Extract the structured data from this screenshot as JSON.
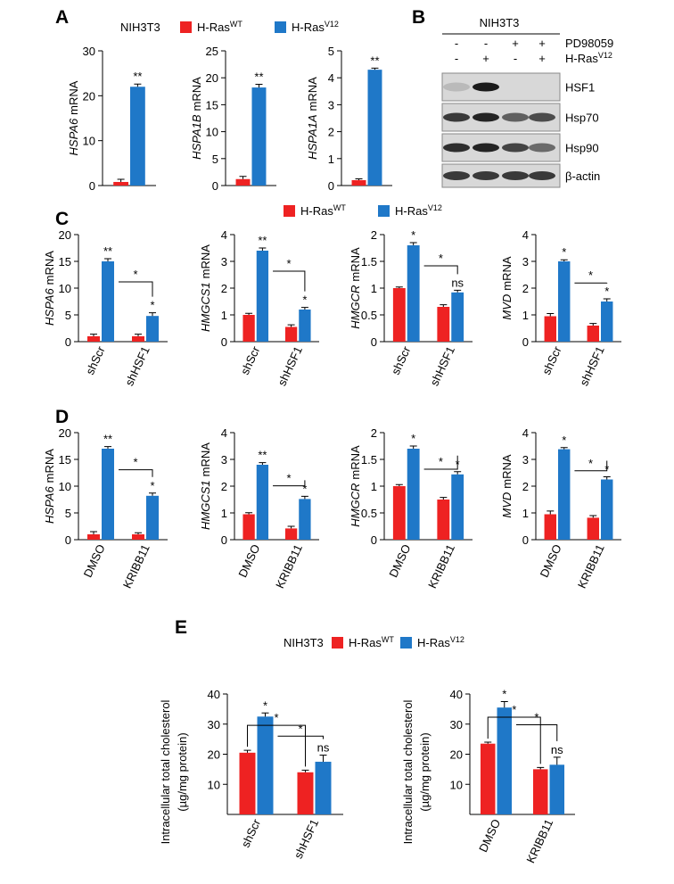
{
  "panel_labels": [
    "A",
    "B",
    "C",
    "D",
    "E"
  ],
  "legends": [
    {
      "title": "NIH3T3",
      "entries": [
        {
          "name": "H-Ras",
          "sup": "WT",
          "color": "#ee2222"
        },
        {
          "name": "H-Ras",
          "sup": "V12",
          "color": "#1f78c8"
        }
      ]
    },
    {
      "entries": [
        {
          "name": "H-Ras",
          "sup": "WT",
          "color": "#ee2222"
        },
        {
          "name": "H-Ras",
          "sup": "V12",
          "color": "#1f78c8"
        }
      ]
    },
    {
      "title": "NIH3T3",
      "entries": [
        {
          "name": "H-Ras",
          "sup": "WT",
          "color": "#ee2222"
        },
        {
          "name": "H-Ras",
          "sup": "V12",
          "color": "#1f78c8"
        }
      ]
    }
  ],
  "blot": {
    "title": "NIH3T3",
    "rows": [
      {
        "text": "PD98059",
        "signs": [
          "-",
          "-",
          "+",
          "+"
        ]
      },
      {
        "text": "H-Ras",
        "sup": "V12",
        "signs": [
          "-",
          "+",
          "-",
          "+"
        ]
      }
    ],
    "bands": [
      "HSF1",
      "Hsp70",
      "Hsp90",
      "β-actin"
    ]
  },
  "chart_data": [
    {
      "type": "bar",
      "ylabel": {
        "gene": "HSPA6",
        "unit": "mRNA"
      },
      "categories": [
        null
      ],
      "ylim": [
        0,
        30
      ],
      "yticks": [
        0,
        10,
        20,
        30
      ],
      "series": [
        {
          "color": "#ee2222",
          "values": [
            0.8
          ],
          "errors": [
            0.6
          ]
        },
        {
          "color": "#1f78c8",
          "values": [
            22
          ],
          "errors": [
            0.6
          ],
          "labels": [
            "**"
          ]
        }
      ]
    },
    {
      "type": "bar",
      "ylabel": {
        "gene": "HSPA1B",
        "unit": "mRNA"
      },
      "categories": [
        null
      ],
      "ylim": [
        0,
        25
      ],
      "yticks": [
        0,
        5,
        10,
        15,
        20,
        25
      ],
      "series": [
        {
          "color": "#ee2222",
          "values": [
            1.2
          ],
          "errors": [
            0.5
          ]
        },
        {
          "color": "#1f78c8",
          "values": [
            18.2
          ],
          "errors": [
            0.6
          ],
          "labels": [
            "**"
          ]
        }
      ]
    },
    {
      "type": "bar",
      "ylabel": {
        "gene": "HSPA1A",
        "unit": "mRNA"
      },
      "categories": [
        null
      ],
      "ylim": [
        0,
        5
      ],
      "yticks": [
        0,
        1,
        2,
        3,
        4,
        5
      ],
      "series": [
        {
          "color": "#ee2222",
          "values": [
            0.2
          ],
          "errors": [
            0.05
          ]
        },
        {
          "color": "#1f78c8",
          "values": [
            4.3
          ],
          "errors": [
            0.06
          ],
          "labels": [
            "**"
          ]
        }
      ]
    },
    {
      "type": "bar",
      "ylabel": {
        "gene": "HSPA6",
        "unit": "mRNA"
      },
      "categories": [
        "shScr",
        "shHSF1"
      ],
      "ylim": [
        0,
        20
      ],
      "yticks": [
        0,
        5,
        10,
        15,
        20
      ],
      "series": [
        {
          "color": "#ee2222",
          "values": [
            1,
            1
          ],
          "errors": [
            0.4,
            0.4
          ]
        },
        {
          "color": "#1f78c8",
          "values": [
            15,
            4.8
          ],
          "errors": [
            0.5,
            0.6
          ],
          "labels": [
            "**",
            "*"
          ]
        }
      ],
      "comparisons": [
        "*"
      ]
    },
    {
      "type": "bar",
      "ylabel": {
        "gene": "HMGCS1",
        "unit": "mRNA"
      },
      "categories": [
        "shScr",
        "shHSF1"
      ],
      "ylim": [
        0,
        4
      ],
      "yticks": [
        0,
        1,
        2,
        3,
        4
      ],
      "series": [
        {
          "color": "#ee2222",
          "values": [
            1,
            0.55
          ],
          "errors": [
            0.06,
            0.08
          ]
        },
        {
          "color": "#1f78c8",
          "values": [
            3.4,
            1.2
          ],
          "errors": [
            0.1,
            0.08
          ],
          "labels": [
            "**",
            "*"
          ]
        }
      ],
      "comparisons": [
        "*"
      ]
    },
    {
      "type": "bar",
      "ylabel": {
        "gene": "HMGCR",
        "unit": "mRNA"
      },
      "categories": [
        "shScr",
        "shHSF1"
      ],
      "ylim": [
        0,
        2
      ],
      "yticks": [
        0,
        0.5,
        1,
        1.5,
        2
      ],
      "series": [
        {
          "color": "#ee2222",
          "values": [
            1,
            0.65
          ],
          "errors": [
            0.02,
            0.04
          ]
        },
        {
          "color": "#1f78c8",
          "values": [
            1.8,
            0.92
          ],
          "errors": [
            0.05,
            0.04
          ],
          "labels": [
            "*",
            "ns"
          ]
        }
      ],
      "comparisons": [
        "*"
      ]
    },
    {
      "type": "bar",
      "ylabel": {
        "gene": "MVD",
        "unit": "mRNA"
      },
      "categories": [
        "shScr",
        "shHSF1"
      ],
      "ylim": [
        0,
        4
      ],
      "yticks": [
        0,
        1,
        2,
        3,
        4
      ],
      "series": [
        {
          "color": "#ee2222",
          "values": [
            0.95,
            0.6
          ],
          "errors": [
            0.1,
            0.08
          ]
        },
        {
          "color": "#1f78c8",
          "values": [
            3,
            1.5
          ],
          "errors": [
            0.06,
            0.1
          ],
          "labels": [
            "*",
            "*"
          ]
        }
      ],
      "comparisons": [
        "*"
      ]
    },
    {
      "type": "bar",
      "ylabel": {
        "gene": "HSPA6",
        "unit": "mRNA"
      },
      "categories": [
        "DMSO",
        "KRIBB11"
      ],
      "ylim": [
        0,
        20
      ],
      "yticks": [
        0,
        5,
        10,
        15,
        20
      ],
      "series": [
        {
          "color": "#ee2222",
          "values": [
            1,
            1
          ],
          "errors": [
            0.5,
            0.3
          ]
        },
        {
          "color": "#1f78c8",
          "values": [
            17,
            8.2
          ],
          "errors": [
            0.4,
            0.5
          ],
          "labels": [
            "**",
            "*"
          ]
        }
      ],
      "comparisons": [
        "*"
      ]
    },
    {
      "type": "bar",
      "ylabel": {
        "gene": "HMGCS1",
        "unit": "mRNA"
      },
      "categories": [
        "DMSO",
        "KRIBB11"
      ],
      "ylim": [
        0,
        4
      ],
      "yticks": [
        0,
        1,
        2,
        3,
        4
      ],
      "series": [
        {
          "color": "#ee2222",
          "values": [
            0.95,
            0.42
          ],
          "errors": [
            0.06,
            0.08
          ]
        },
        {
          "color": "#1f78c8",
          "values": [
            2.8,
            1.52
          ],
          "errors": [
            0.08,
            0.1
          ],
          "labels": [
            "**",
            "*"
          ]
        }
      ],
      "comparisons": [
        "*"
      ]
    },
    {
      "type": "bar",
      "ylabel": {
        "gene": "HMGCR",
        "unit": "mRNA"
      },
      "categories": [
        "DMSO",
        "KRIBB11"
      ],
      "ylim": [
        0,
        2
      ],
      "yticks": [
        0,
        0.5,
        1,
        1.5,
        2
      ],
      "series": [
        {
          "color": "#ee2222",
          "values": [
            1,
            0.75
          ],
          "errors": [
            0.03,
            0.04
          ]
        },
        {
          "color": "#1f78c8",
          "values": [
            1.7,
            1.22
          ],
          "errors": [
            0.05,
            0.05
          ],
          "labels": [
            "*",
            "*"
          ]
        }
      ],
      "comparisons": [
        "*"
      ]
    },
    {
      "type": "bar",
      "ylabel": {
        "gene": "MVD",
        "unit": "mRNA"
      },
      "categories": [
        "DMSO",
        "KRIBB11"
      ],
      "ylim": [
        0,
        4
      ],
      "yticks": [
        0,
        1,
        2,
        3,
        4
      ],
      "series": [
        {
          "color": "#ee2222",
          "values": [
            0.95,
            0.82
          ],
          "errors": [
            0.12,
            0.08
          ]
        },
        {
          "color": "#1f78c8",
          "values": [
            3.38,
            2.25
          ],
          "errors": [
            0.06,
            0.1
          ],
          "labels": [
            "*",
            "*"
          ]
        }
      ],
      "comparisons": [
        "*"
      ]
    },
    {
      "type": "bar",
      "ylabel": [
        "Intracellular total cholesterol",
        "(µg/mg protein)"
      ],
      "categories": [
        "shScr",
        "shHSF1"
      ],
      "ylim": [
        0,
        40
      ],
      "yticks": [
        10,
        20,
        30,
        40
      ],
      "series": [
        {
          "color": "#ee2222",
          "values": [
            20.5,
            14
          ],
          "errors": [
            0.8,
            0.7
          ]
        },
        {
          "color": "#1f78c8",
          "values": [
            32.5,
            17.5
          ],
          "errors": [
            1.2,
            2.2
          ],
          "labels": [
            "*",
            "ns"
          ]
        }
      ],
      "comparisons": [
        "*",
        "*"
      ]
    },
    {
      "type": "bar",
      "ylabel": [
        "Intracellular total cholesterol",
        "(µg/mg protein)"
      ],
      "categories": [
        "DMSO",
        "KRIBB11"
      ],
      "ylim": [
        0,
        40
      ],
      "yticks": [
        10,
        20,
        30,
        40
      ],
      "series": [
        {
          "color": "#ee2222",
          "values": [
            23.5,
            15
          ],
          "errors": [
            0.5,
            0.6
          ]
        },
        {
          "color": "#1f78c8",
          "values": [
            35.5,
            16.5
          ],
          "errors": [
            2,
            2.5
          ],
          "labels": [
            "*",
            "ns"
          ]
        }
      ],
      "comparisons": [
        "*",
        "*"
      ]
    }
  ]
}
